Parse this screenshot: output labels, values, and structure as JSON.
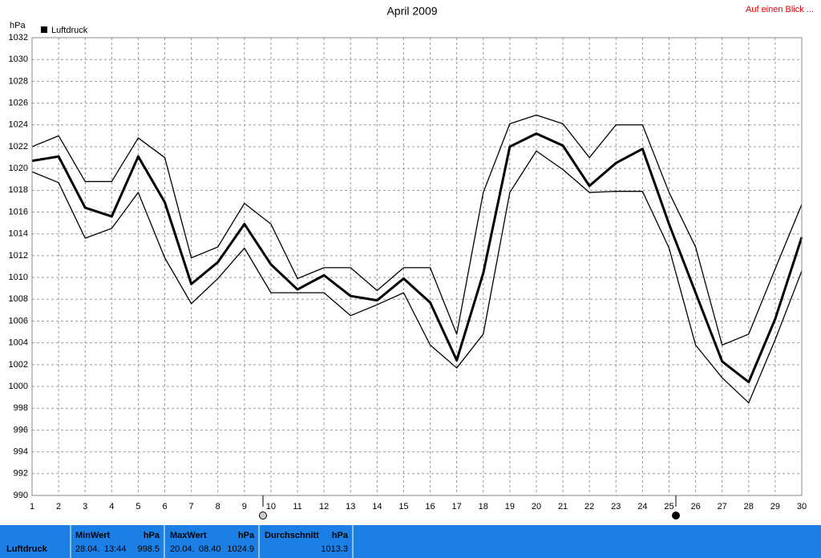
{
  "chart_data": {
    "type": "line",
    "title": "April 2009",
    "y_label": "hPa",
    "x": [
      1,
      2,
      3,
      4,
      5,
      6,
      7,
      8,
      9,
      10,
      11,
      12,
      13,
      14,
      15,
      16,
      17,
      18,
      19,
      20,
      21,
      22,
      23,
      24,
      25,
      26,
      27,
      28,
      29,
      30
    ],
    "xlim": [
      1,
      30
    ],
    "xticks": [
      1,
      2,
      3,
      4,
      5,
      6,
      7,
      8,
      9,
      10,
      11,
      12,
      13,
      14,
      15,
      16,
      17,
      18,
      19,
      20,
      21,
      22,
      23,
      24,
      25,
      26,
      27,
      28,
      29,
      30
    ],
    "ylim": [
      990,
      1032
    ],
    "yticks": [
      990,
      992,
      994,
      996,
      998,
      1000,
      1002,
      1004,
      1006,
      1008,
      1010,
      1012,
      1014,
      1016,
      1018,
      1020,
      1022,
      1024,
      1026,
      1028,
      1030,
      1032
    ],
    "grid": true,
    "series": [
      {
        "name": "Luftdruck",
        "color": "#000000",
        "values": [
          1020.7,
          1021.1,
          1016.4,
          1015.6,
          1021.1,
          1016.9,
          1009.4,
          1011.4,
          1014.9,
          1011.2,
          1008.9,
          1010.2,
          1008.3,
          1007.9,
          1009.9,
          1007.7,
          1002.4,
          1010.4,
          1022.0,
          1023.2,
          1022.1,
          1018.4,
          1020.5,
          1021.8,
          1014.9,
          1008.6,
          1002.3,
          1000.4,
          1006.2,
          1013.7
        ]
      },
      {
        "color": "#000000",
        "values": [
          1022.0,
          1023.0,
          1018.8,
          1018.8,
          1022.8,
          1021.0,
          1011.8,
          1012.8,
          1016.8,
          1014.9,
          1009.9,
          1010.9,
          1010.9,
          1008.8,
          1010.9,
          1010.9,
          1004.8,
          1017.8,
          1024.1,
          1024.9,
          1024.1,
          1021.0,
          1024.0,
          1024.0,
          1017.8,
          1012.8,
          1003.8,
          1004.8,
          1010.8,
          1016.7
        ]
      },
      {
        "color": "#000000",
        "values": [
          1019.7,
          1018.7,
          1013.6,
          1014.5,
          1017.8,
          1011.8,
          1007.6,
          1009.9,
          1012.7,
          1008.6,
          1008.6,
          1008.6,
          1006.5,
          1007.5,
          1008.6,
          1003.8,
          1001.7,
          1004.8,
          1017.8,
          1021.6,
          1019.9,
          1017.8,
          1017.9,
          1017.9,
          1012.7,
          1003.8,
          1000.8,
          998.5,
          1004.3,
          1010.6
        ]
      }
    ]
  },
  "link": "Auf einen Blick ...",
  "status_bar": {
    "label": "Luftdruck",
    "cells": [
      {
        "title": "MinWert",
        "unit": "hPa",
        "date": "28.04.",
        "time": "13:44",
        "value": 998.5
      },
      {
        "title": "MaxWert",
        "unit": "hPa",
        "date": "20.04.",
        "time": "08.40",
        "value": 1024.9
      },
      {
        "title": "Durchschnitt",
        "unit": "hPa",
        "value": 1013.3
      }
    ]
  }
}
